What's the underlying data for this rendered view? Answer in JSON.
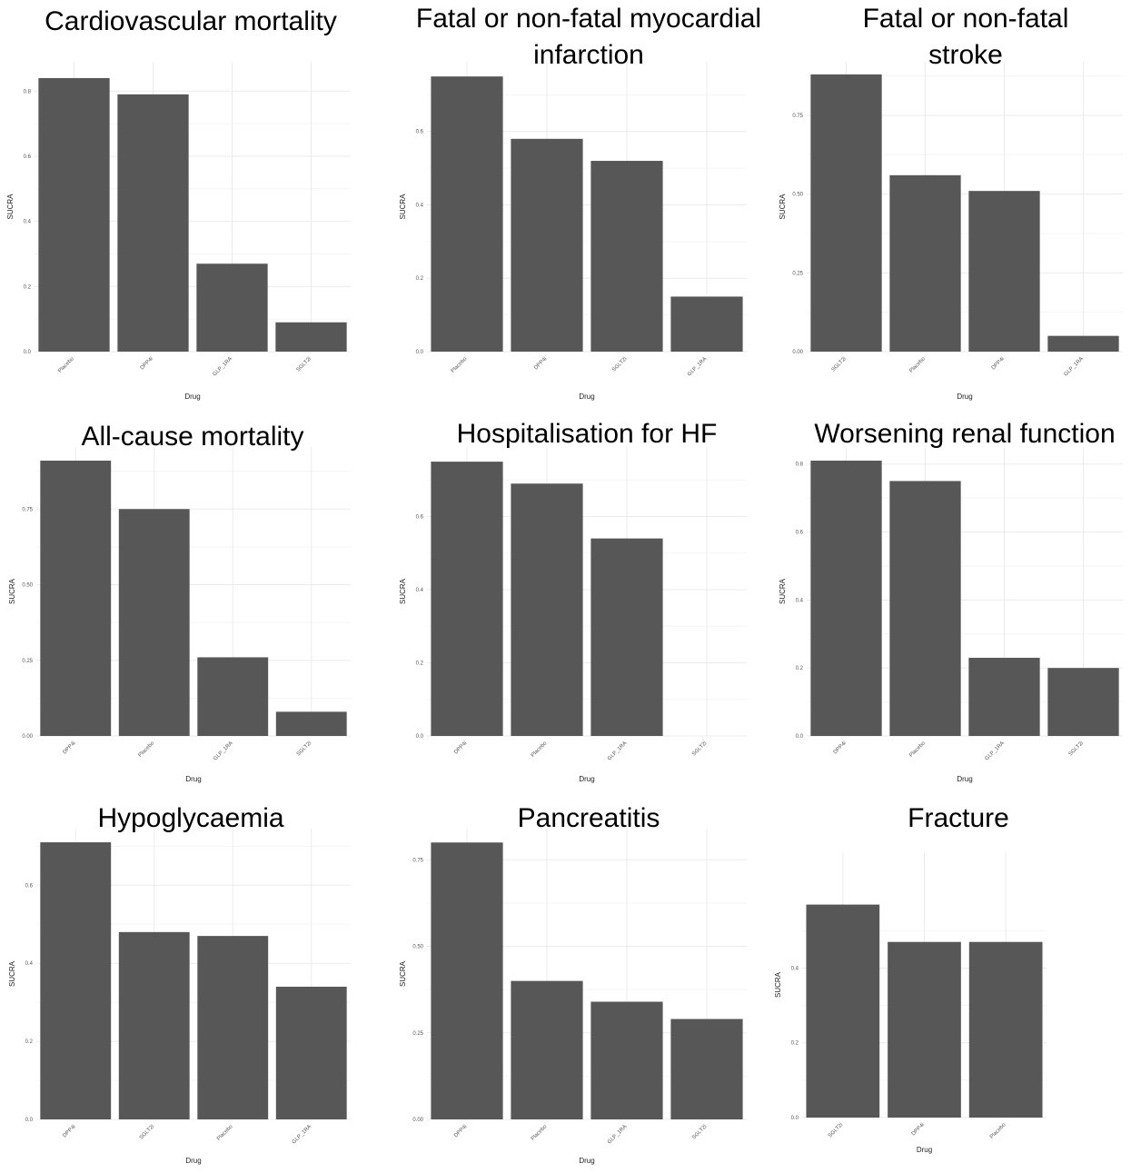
{
  "chart_data": [
    {
      "type": "bar",
      "title": "Cardiovascular mortality",
      "xlabel": "Drug",
      "ylabel": "SUCRA",
      "categories": [
        "Placebo",
        "DPP4i",
        "GLP_1RA",
        "SGLT2i"
      ],
      "values": [
        0.84,
        0.79,
        0.27,
        0.09
      ],
      "ylim": [
        0,
        0.89
      ],
      "yticks": [
        0.0,
        0.2,
        0.4,
        0.6,
        0.8
      ],
      "ytick_labels": [
        "0.0",
        "0.2",
        "0.4",
        "0.6",
        "0.8"
      ],
      "grid": true
    },
    {
      "type": "bar",
      "title": "Fatal or non-fatal myocardial infarction",
      "xlabel": "Drug",
      "ylabel": "SUCRA",
      "categories": [
        "Placebo",
        "DPP4i",
        "SGLT2i",
        "GLP_1RA"
      ],
      "values": [
        0.75,
        0.58,
        0.52,
        0.15
      ],
      "ylim": [
        0,
        0.79
      ],
      "yticks": [
        0.0,
        0.2,
        0.4,
        0.6
      ],
      "ytick_labels": [
        "0.0",
        "0.2",
        "0.4",
        "0.6"
      ],
      "grid": true
    },
    {
      "type": "bar",
      "title": "Fatal or non-fatal stroke",
      "xlabel": "Drug",
      "ylabel": "SUCRA",
      "categories": [
        "SGLT2i",
        "Placebo",
        "DPP4i",
        "GLP_1RA"
      ],
      "values": [
        0.88,
        0.56,
        0.51,
        0.05
      ],
      "ylim": [
        0,
        0.92
      ],
      "yticks": [
        0.0,
        0.25,
        0.5,
        0.75
      ],
      "ytick_labels": [
        "0.00",
        "0.25",
        "0.50",
        "0.75"
      ],
      "grid": true
    },
    {
      "type": "bar",
      "title": "All-cause mortality",
      "xlabel": "Drug",
      "ylabel": "SUCRA",
      "categories": [
        "DPP4i",
        "Placebo",
        "GLP_1RA",
        "SGLT2i"
      ],
      "values": [
        0.91,
        0.75,
        0.26,
        0.08
      ],
      "ylim": [
        0,
        0.955
      ],
      "yticks": [
        0.0,
        0.25,
        0.5,
        0.75
      ],
      "ytick_labels": [
        "0.00",
        "0.25",
        "0.50",
        "0.75"
      ],
      "grid": true
    },
    {
      "type": "bar",
      "title": "Hospitalisation for HF",
      "xlabel": "Drug",
      "ylabel": "SUCRA",
      "categories": [
        "DPP4i",
        "Placebo",
        "GLP_1RA",
        "SGLT2i"
      ],
      "values": [
        0.75,
        0.69,
        0.54,
        0.0
      ],
      "ylim": [
        0,
        0.79
      ],
      "yticks": [
        0.0,
        0.2,
        0.4,
        0.6
      ],
      "ytick_labels": [
        "0.0",
        "0.2",
        "0.4",
        "0.6"
      ],
      "grid": true
    },
    {
      "type": "bar",
      "title": "Worsening renal function",
      "xlabel": "Drug",
      "ylabel": "SUCRA",
      "categories": [
        "DPP4i",
        "Placebo",
        "GLP_1RA",
        "SGLT2i"
      ],
      "values": [
        0.81,
        0.75,
        0.23,
        0.2
      ],
      "ylim": [
        0,
        0.85
      ],
      "yticks": [
        0.0,
        0.2,
        0.4,
        0.6,
        0.8
      ],
      "ytick_labels": [
        "0.0",
        "0.2",
        "0.4",
        "0.6",
        "0.8"
      ],
      "grid": true
    },
    {
      "type": "bar",
      "title": "Hypoglycaemia",
      "xlabel": "Drug",
      "ylabel": "SUCRA",
      "categories": [
        "DPP4i",
        "SGLT2i",
        "Placebo",
        "GLP_1RA"
      ],
      "values": [
        0.71,
        0.48,
        0.47,
        0.34
      ],
      "ylim": [
        0,
        0.745
      ],
      "yticks": [
        0.0,
        0.2,
        0.4,
        0.6
      ],
      "ytick_labels": [
        "0.0",
        "0.2",
        "0.4",
        "0.6"
      ],
      "grid": true
    },
    {
      "type": "bar",
      "title": "Pancreatitis",
      "xlabel": "Drug",
      "ylabel": "SUCRA",
      "categories": [
        "DPP4i",
        "Placebo",
        "GLP_1RA",
        "SGLT2i"
      ],
      "values": [
        0.8,
        0.4,
        0.34,
        0.29
      ],
      "ylim": [
        0,
        0.84
      ],
      "yticks": [
        0.0,
        0.25,
        0.5,
        0.75
      ],
      "ytick_labels": [
        "0.00",
        "0.25",
        "0.50",
        "0.75"
      ],
      "grid": true
    },
    {
      "type": "bar",
      "title": "Fracture",
      "xlabel": "Drug",
      "ylabel": "SUCRA",
      "categories": [
        "SGLT2i",
        "DPP4i",
        "Placebo"
      ],
      "values": [
        0.57,
        0.47,
        0.47
      ],
      "ylim": [
        0,
        0.71
      ],
      "yticks": [
        0.0,
        0.2,
        0.4
      ],
      "ytick_labels": [
        "0.0",
        "0.2",
        "0.4"
      ],
      "grid": true
    }
  ],
  "colors": {
    "bar": "#575757",
    "grid": "#ebebeb",
    "text": "#000000"
  }
}
